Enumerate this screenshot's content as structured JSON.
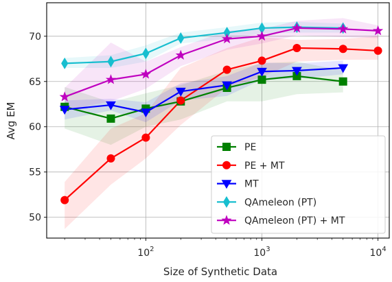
{
  "chart_data": {
    "type": "line",
    "xlabel": "Size of Synthetic Data",
    "ylabel": "Avg EM",
    "xscale": "log",
    "xlim": [
      14,
      12500
    ],
    "ylim": [
      47.7,
      73.7
    ],
    "grid": true,
    "legend_position": "lower-right",
    "x_tick_labels": [
      {
        "value": 100,
        "base": "10",
        "exp": "2"
      },
      {
        "value": 1000,
        "base": "10",
        "exp": "3"
      },
      {
        "value": 10000,
        "base": "10",
        "exp": "4"
      }
    ],
    "y_ticks": [
      50,
      55,
      60,
      65,
      70
    ],
    "y_tick_labels": [
      "50",
      "55",
      "60",
      "65",
      "70"
    ],
    "series": [
      {
        "name": "PE",
        "color": "#008000",
        "marker": "square",
        "x": [
          20,
          50,
          100,
          200,
          500,
          1000,
          2000,
          5000
        ],
        "y": [
          62.2,
          60.9,
          62.0,
          62.8,
          64.3,
          65.2,
          65.6,
          65.0
        ],
        "band_lo": [
          59.8,
          58.0,
          60.0,
          60.8,
          62.8,
          62.8,
          63.6,
          63.8
        ],
        "band_hi": [
          64.4,
          62.7,
          63.7,
          64.6,
          66.2,
          67.0,
          67.2,
          66.2
        ]
      },
      {
        "name": "PE + MT",
        "color": "#ff0000",
        "marker": "circle",
        "x": [
          20,
          50,
          100,
          200,
          500,
          1000,
          2000,
          5000,
          10000
        ],
        "y": [
          51.9,
          56.5,
          58.8,
          62.9,
          66.3,
          67.3,
          68.7,
          68.6,
          68.4
        ],
        "band_lo": [
          48.7,
          53.6,
          56.5,
          60.2,
          64.3,
          65.5,
          67.2,
          67.4,
          67.4
        ],
        "band_hi": [
          53.9,
          59.8,
          61.5,
          66.5,
          68.7,
          69.9,
          69.6,
          69.7,
          70.0
        ]
      },
      {
        "name": "MT",
        "color": "#0000ff",
        "marker": "triangle-down",
        "x": [
          20,
          50,
          100,
          200,
          500,
          1000,
          2000,
          5000
        ],
        "y": [
          61.9,
          62.4,
          61.6,
          63.9,
          64.6,
          66.1,
          66.2,
          66.5
        ],
        "band_lo": [
          60.8,
          61.8,
          60.5,
          62.9,
          63.4,
          65.2,
          65.3,
          65.8
        ],
        "band_hi": [
          62.9,
          63.1,
          62.7,
          64.8,
          65.6,
          67.1,
          67.0,
          67.3
        ]
      },
      {
        "name": "QAmeleon (PT)",
        "color": "#17becf",
        "marker": "thin-diamond",
        "x": [
          20,
          50,
          100,
          200,
          500,
          1000,
          2000,
          5000
        ],
        "y": [
          67.0,
          67.2,
          68.1,
          69.8,
          70.4,
          70.9,
          71.0,
          70.9
        ],
        "band_lo": [
          66.5,
          66.5,
          67.2,
          69.2,
          69.7,
          70.3,
          70.4,
          70.4
        ],
        "band_hi": [
          67.6,
          67.9,
          69.0,
          70.4,
          71.0,
          71.5,
          71.6,
          71.4
        ]
      },
      {
        "name": "QAmeleon (PT) + MT",
        "color": "#bf00bf",
        "marker": "star",
        "x": [
          20,
          50,
          100,
          200,
          500,
          1000,
          2000,
          5000,
          10000
        ],
        "y": [
          63.3,
          65.2,
          65.8,
          67.9,
          69.7,
          70.0,
          70.9,
          70.8,
          70.6
        ],
        "band_lo": [
          61.8,
          62.8,
          64.2,
          66.7,
          68.5,
          69.2,
          70.1,
          69.9,
          69.8
        ],
        "band_hi": [
          64.3,
          69.3,
          67.2,
          68.8,
          70.6,
          70.8,
          71.7,
          72.0,
          71.2
        ]
      }
    ]
  }
}
